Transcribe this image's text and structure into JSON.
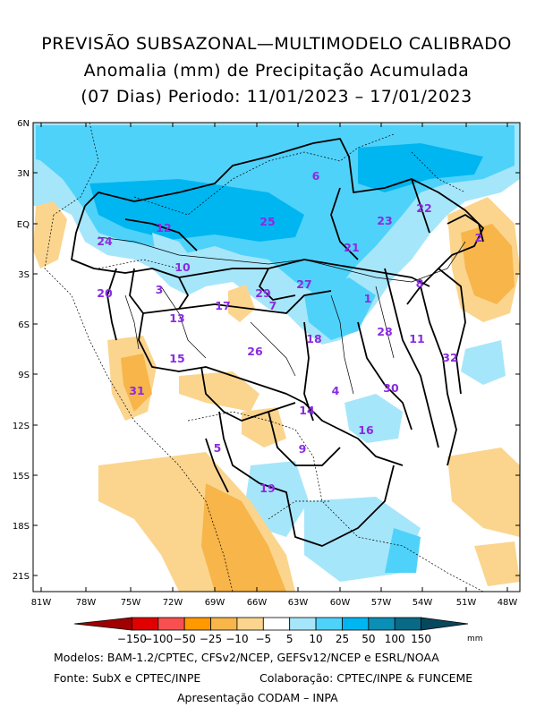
{
  "title": {
    "line1": "PREVISÃO SUBSAZONAL—MULTIMODELO CALIBRADO",
    "line2": "Anomalia (mm) de Precipitação Acumulada",
    "line3": "(07 Dias) Periodo: 11/01/2023 – 17/01/2023"
  },
  "axes": {
    "lon_labels": [
      "81W",
      "78W",
      "75W",
      "72W",
      "69W",
      "66W",
      "63W",
      "60W",
      "57W",
      "54W",
      "51W",
      "48W"
    ],
    "lat_labels": [
      "6N",
      "3N",
      "EQ",
      "3S",
      "6S",
      "9S",
      "12S",
      "15S",
      "18S",
      "21S"
    ]
  },
  "colorbar": {
    "labels": [
      "−150",
      "−100",
      "−50",
      "−25",
      "−10",
      "−5",
      "5",
      "10",
      "25",
      "50",
      "100",
      "150"
    ],
    "unit": "mm",
    "colors": [
      "#a00000",
      "#e00000",
      "#f85050",
      "#ff9900",
      "#f7b54a",
      "#fbd58e",
      "#ffffff",
      "#a6e6fa",
      "#4fd2fa",
      "#00b6f0",
      "#0b8fb6",
      "#086a86",
      "#06485e"
    ]
  },
  "basins": [
    {
      "id": "1"
    },
    {
      "id": "2"
    },
    {
      "id": "3"
    },
    {
      "id": "4"
    },
    {
      "id": "5"
    },
    {
      "id": "6"
    },
    {
      "id": "7"
    },
    {
      "id": "8"
    },
    {
      "id": "9"
    },
    {
      "id": "10"
    },
    {
      "id": "11"
    },
    {
      "id": "12"
    },
    {
      "id": "13"
    },
    {
      "id": "14"
    },
    {
      "id": "15"
    },
    {
      "id": "16"
    },
    {
      "id": "17"
    },
    {
      "id": "18"
    },
    {
      "id": "19"
    },
    {
      "id": "20"
    },
    {
      "id": "21"
    },
    {
      "id": "22"
    },
    {
      "id": "23"
    },
    {
      "id": "24"
    },
    {
      "id": "25"
    },
    {
      "id": "26"
    },
    {
      "id": "27"
    },
    {
      "id": "28"
    },
    {
      "id": "29"
    },
    {
      "id": "30"
    },
    {
      "id": "31"
    },
    {
      "id": "32"
    }
  ],
  "footer": {
    "models": "Modelos: BAM-1.2/CPTEC, CFSv2/NCEP, GEFSv12/NCEP e ESRL/NOAA",
    "source": "Fonte: SubX e CPTEC/INPE",
    "collab": "Colaboração: CPTEC/INPE & FUNCEME",
    "presentation": "Apresentação CODAM – INPA"
  }
}
